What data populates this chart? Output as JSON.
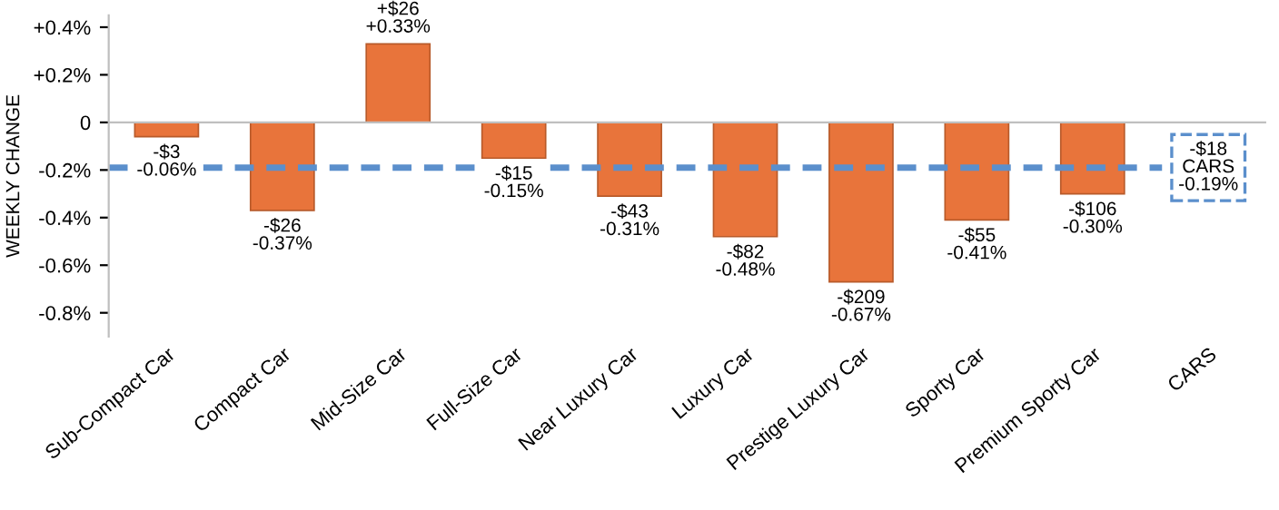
{
  "chart_data": {
    "type": "bar",
    "ylabel": "WEEKLY CHANGE",
    "categories": [
      "Sub-Compact Car",
      "Compact Car",
      "Mid-Size Car",
      "Full-Size Car",
      "Near Luxury Car",
      "Luxury Car",
      "Prestige Luxury Car",
      "Sporty Car",
      "Premium Sporty Car",
      "CARS"
    ],
    "values": [
      -0.06,
      -0.37,
      0.33,
      -0.15,
      -0.31,
      -0.48,
      -0.67,
      -0.41,
      -0.3,
      null
    ],
    "value_labels": [
      "-$3\n-0.06%",
      "-$26\n-0.37%",
      "+$26\n+0.33%",
      "-$15\n-0.15%",
      "-$43\n-0.31%",
      "-$82\n-0.48%",
      "-$209\n-0.67%",
      "-$55\n-0.41%",
      "-$106\n-0.30%",
      null
    ],
    "color": "#e8743b",
    "ylim": [
      -0.9,
      0.45
    ],
    "yticks": [
      {
        "value": 0.4,
        "label": "+0.4%"
      },
      {
        "value": 0.2,
        "label": "+0.2%"
      },
      0,
      {
        "value": -0.2,
        "label": "-0.2%"
      },
      {
        "value": -0.4,
        "label": "-0.4%"
      },
      {
        "value": -0.6,
        "label": "-0.6%"
      },
      {
        "value": -0.8,
        "label": "-0.8%"
      }
    ],
    "ref_lines": [
      {
        "axis": "y",
        "value": -0.19,
        "label": "-$18\nCARS\n-0.19%",
        "color": "#5b8fcc",
        "line_style": "dashed"
      }
    ],
    "grid": false,
    "legend": false
  }
}
